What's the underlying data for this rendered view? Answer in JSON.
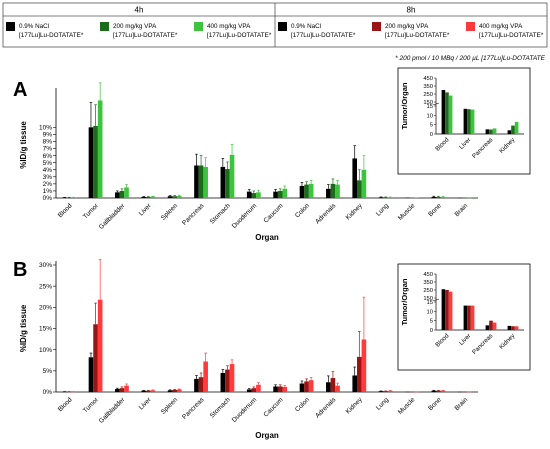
{
  "legend": {
    "col_4h": "4h",
    "col_8h": "8h",
    "entries_4h": [
      {
        "line1": "0.9% NaCl",
        "line2": "[177Lu]Lu-DOTATATE*",
        "color": "#000000"
      },
      {
        "line1": "200 mg/kg VPA",
        "line2": "[177Lu]Lu-DOTATATE*",
        "color": "#1a6b1a"
      },
      {
        "line1": "400 mg/kg VPA",
        "line2": "[177Lu]Lu-DOTATATE*",
        "color": "#3cc43c"
      }
    ],
    "entries_8h": [
      {
        "line1": "0.9% NaCl",
        "line2": "[177Lu]Lu-DOTATATE*",
        "color": "#000000"
      },
      {
        "line1": "200 mg/kg VPA",
        "line2": "[177Lu]Lu-DOTATATE*",
        "color": "#9b1414"
      },
      {
        "line1": "400 mg/kg VPA",
        "line2": "[177Lu]Lu-DOTATATE*",
        "color": "#ff3b3b"
      }
    ],
    "footnote": "* 200 pmol / 10 MBq / 200 µL [177Lu]Lu-DOTATATE"
  },
  "chart_data": [
    {
      "panel": "A",
      "type": "bar",
      "xlabel": "Organ",
      "ylabel": "%ID/g tissue",
      "ylim": [
        0,
        15
      ],
      "yticks": [
        "0%",
        "1%",
        "2%",
        "3%",
        "4%",
        "5%",
        "6%",
        "7%",
        "8%",
        "9%",
        "10%"
      ],
      "categories": [
        "Blood",
        "Tumor",
        "Gallbladder",
        "Liver",
        "Spleen",
        "Pancreas",
        "Stomach",
        "Duodenum",
        "Caucum",
        "Colon",
        "Adrenals",
        "Kidney",
        "Lung",
        "Muscle",
        "Bone",
        "Brain"
      ],
      "series": [
        {
          "color": "#000000",
          "values": [
            0.05,
            10.0,
            0.8,
            0.15,
            0.25,
            4.6,
            4.4,
            0.9,
            0.9,
            1.7,
            1.3,
            5.6,
            0.1,
            0.05,
            0.15,
            0.03
          ],
          "errors": [
            0.05,
            3.5,
            0.2,
            0.05,
            0.1,
            1.6,
            1.2,
            0.3,
            0.3,
            0.5,
            0.6,
            1.8,
            0.05,
            0.03,
            0.1,
            0.02
          ]
        },
        {
          "color": "#1a6b1a",
          "values": [
            0.05,
            10.2,
            1.0,
            0.15,
            0.25,
            4.6,
            4.1,
            0.7,
            1.0,
            1.9,
            2.0,
            2.5,
            0.1,
            0.05,
            0.15,
            0.03
          ],
          "errors": [
            0.05,
            3.0,
            0.3,
            0.05,
            0.1,
            1.4,
            1.0,
            0.3,
            0.3,
            0.4,
            0.7,
            1.5,
            0.05,
            0.03,
            0.1,
            0.02
          ]
        },
        {
          "color": "#3cc43c",
          "values": [
            0.05,
            13.8,
            1.5,
            0.2,
            0.3,
            4.4,
            6.1,
            0.8,
            1.3,
            2.0,
            1.9,
            4.0,
            0.1,
            0.05,
            0.15,
            0.03
          ],
          "errors": [
            0.05,
            2.5,
            0.4,
            0.05,
            0.1,
            1.3,
            1.5,
            0.3,
            0.4,
            0.5,
            0.6,
            2.0,
            0.05,
            0.03,
            0.1,
            0.02
          ]
        }
      ],
      "inset": {
        "ylabel": "Tumor/Organ",
        "yticks": [
          "0",
          "5",
          "10",
          "15",
          "150",
          "250",
          "350",
          "450"
        ],
        "categories": [
          "Blood",
          "Liver",
          "Pancreas",
          "Kidney"
        ],
        "series": [
          {
            "color": "#000000",
            "values": [
              300,
              65,
              2.5,
              2.0
            ]
          },
          {
            "color": "#1a6b1a",
            "values": [
              270,
              60,
              2.4,
              4.5
            ]
          },
          {
            "color": "#3cc43c",
            "values": [
              230,
              55,
              3.0,
              6.5
            ]
          }
        ]
      }
    },
    {
      "panel": "B",
      "type": "bar",
      "xlabel": "Organ",
      "ylabel": "%ID/g tissue",
      "ylim": [
        0,
        30
      ],
      "yticks": [
        "0%",
        "5%",
        "10%",
        "15%",
        "20%",
        "25%",
        "30%"
      ],
      "categories": [
        "Blood",
        "Tumor",
        "Gallbladder",
        "Liver",
        "Spleen",
        "Pancreas",
        "Stomach",
        "Duodenum",
        "Caucum",
        "Colon",
        "Adrenals",
        "Kidney",
        "Lung",
        "Muscle",
        "Bone",
        "Brain"
      ],
      "series": [
        {
          "color": "#000000",
          "values": [
            0.05,
            8.2,
            0.7,
            0.3,
            0.4,
            3.1,
            4.5,
            0.6,
            1.3,
            2.0,
            2.3,
            3.9,
            0.2,
            0.05,
            0.3,
            0.05
          ],
          "errors": [
            0.05,
            1.0,
            0.2,
            0.1,
            0.1,
            0.8,
            0.8,
            0.2,
            0.4,
            0.6,
            1.5,
            2.0,
            0.05,
            0.03,
            0.1,
            0.02
          ]
        },
        {
          "color": "#9b1414",
          "values": [
            0.05,
            16.0,
            0.9,
            0.3,
            0.5,
            3.5,
            5.3,
            0.9,
            1.3,
            2.5,
            3.3,
            8.3,
            0.2,
            0.05,
            0.3,
            0.05
          ],
          "errors": [
            0.05,
            5.0,
            0.3,
            0.1,
            0.1,
            1.0,
            0.9,
            0.3,
            0.4,
            0.6,
            1.5,
            6.0,
            0.05,
            0.03,
            0.1,
            0.02
          ]
        },
        {
          "color": "#ff3b3b",
          "values": [
            0.05,
            21.8,
            1.5,
            0.4,
            0.6,
            7.2,
            6.6,
            1.7,
            1.2,
            2.8,
            1.5,
            12.4,
            0.3,
            0.05,
            0.3,
            0.05
          ],
          "errors": [
            0.05,
            9.5,
            0.4,
            0.1,
            0.1,
            2.0,
            1.0,
            0.5,
            0.3,
            0.6,
            0.6,
            10.0,
            0.05,
            0.03,
            0.1,
            0.02
          ]
        }
      ],
      "inset": {
        "ylabel": "Tumor/Organ",
        "yticks": [
          "0",
          "5",
          "10",
          "15",
          "150",
          "250",
          "350",
          "450"
        ],
        "categories": [
          "Blood",
          "Liver",
          "Pancreas",
          "Kidney"
        ],
        "series": [
          {
            "color": "#000000",
            "values": [
              260,
              55,
              2.5,
              2.2
            ]
          },
          {
            "color": "#9b1414",
            "values": [
              250,
              55,
              5.0,
              2.0
            ]
          },
          {
            "color": "#ff3b3b",
            "values": [
              230,
              55,
              4.0,
              2.0
            ]
          }
        ]
      }
    }
  ]
}
